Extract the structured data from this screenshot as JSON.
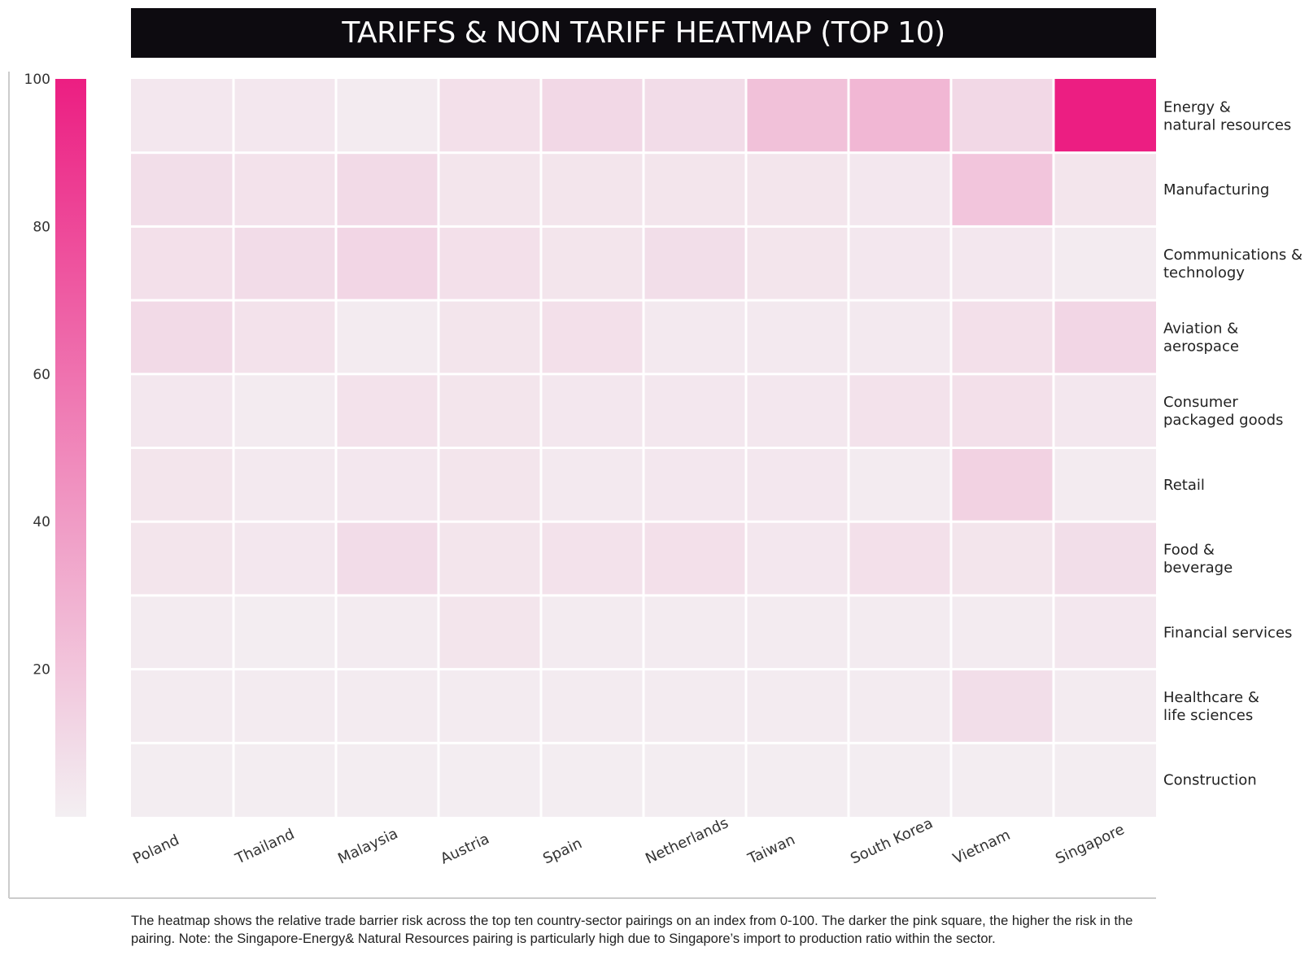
{
  "title": "TARIFFS & NON TARIFF HEATMAP (TOP 10)",
  "caption": "The heatmap shows the relative trade barrier risk across the top ten country-sector pairings on an index from 0-100. The darker the pink square, the higher the risk in the pairing. Note: the Singapore-Energy& Natural Resources pairing is particularly high due to Singapore’s import to production ratio within the sector.",
  "colors": {
    "low": "#f3eff2",
    "high": "#ec1e82",
    "title_bg": "#0d0b10",
    "title_text": "#ffffff"
  },
  "chart_data": {
    "type": "heatmap",
    "title": "TARIFFS & NON TARIFF HEATMAP (TOP 10)",
    "colorbar": {
      "min": 0,
      "max": 100,
      "ticks": [
        "100",
        "80",
        "60",
        "40",
        "20"
      ],
      "tick_values": [
        100,
        80,
        60,
        40,
        20
      ]
    },
    "columns": [
      "Poland",
      "Thailand",
      "Malaysia",
      "Austria",
      "Spain",
      "Netherlands",
      "Taiwan",
      "South Korea",
      "Vietnam",
      "Singapore"
    ],
    "rows": [
      [
        "Energy &",
        "natural resources"
      ],
      [
        "Manufacturing"
      ],
      [
        "Communications &",
        "technology"
      ],
      [
        "Aviation &",
        "aerospace"
      ],
      [
        "Consumer",
        "packaged goods"
      ],
      [
        "Retail"
      ],
      [
        "Food &",
        "beverage"
      ],
      [
        "Financial services"
      ],
      [
        "Healthcare &",
        "life sciences"
      ],
      [
        "Construction"
      ]
    ],
    "values": [
      [
        4,
        4,
        2,
        7,
        11,
        9,
        22,
        27,
        11,
        100
      ],
      [
        8,
        6,
        10,
        5,
        5,
        5,
        5,
        4,
        20,
        5
      ],
      [
        7,
        9,
        12,
        7,
        5,
        8,
        5,
        4,
        4,
        2
      ],
      [
        10,
        6,
        2,
        5,
        7,
        3,
        3,
        3,
        7,
        12
      ],
      [
        4,
        2,
        6,
        5,
        4,
        4,
        4,
        6,
        7,
        4
      ],
      [
        5,
        3,
        4,
        5,
        3,
        4,
        4,
        2,
        14,
        2
      ],
      [
        5,
        4,
        9,
        5,
        6,
        7,
        4,
        7,
        5,
        8
      ],
      [
        2,
        1,
        2,
        5,
        2,
        2,
        2,
        2,
        2,
        4
      ],
      [
        2,
        2,
        2,
        2,
        2,
        2,
        2,
        2,
        8,
        2
      ],
      [
        1,
        1,
        1,
        1,
        1,
        1,
        1,
        1,
        1,
        1
      ]
    ]
  }
}
